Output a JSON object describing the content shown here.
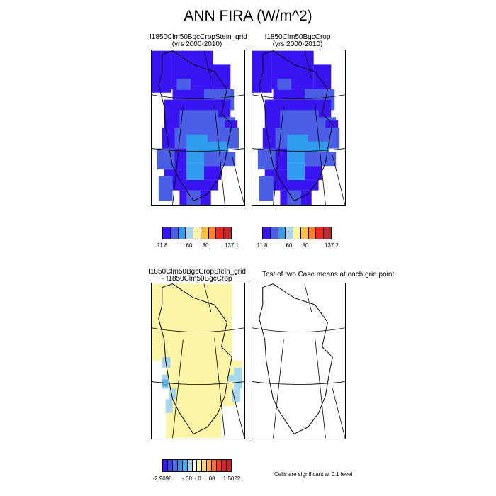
{
  "title": "ANN FIRA (W/m^2)",
  "panels": [
    {
      "line1": "I1850Clm50BgcCropStein_grid",
      "line2": "(yrs 2000-2010)"
    },
    {
      "line1": "I1850Clm50BgcCrop",
      "line2": "(yrs 2000-2010)"
    },
    {
      "line1": "I1850Clm50BgcCropStein_grid",
      "line2": "- I1850Clm50BgcCrop"
    },
    {
      "line1": "Test of two Case means at each grid point",
      "line2": ""
    }
  ],
  "colorbars": [
    {
      "colors": [
        "#3a14f2",
        "#4a5fe6",
        "#2f9cef",
        "#a6d6ee",
        "#fdf5a6",
        "#f9c243",
        "#f6822a",
        "#f0291d",
        "#c4262d"
      ],
      "labels": [
        "11.8",
        "60",
        "80",
        "137.1"
      ]
    },
    {
      "colors": [
        "#3a14f2",
        "#4a5fe6",
        "#2f9cef",
        "#a6d6ee",
        "#fdf5a6",
        "#f9c243",
        "#f6822a",
        "#f0291d",
        "#c4262d"
      ],
      "labels": [
        "11.8",
        "60",
        "80",
        "137.2"
      ]
    },
    {
      "colors": [
        "#3a14f2",
        "#3a3fe6",
        "#4a6ee8",
        "#3b93e6",
        "#4fb0ee",
        "#a6d6ee",
        "#fefefe",
        "#fdf5a6",
        "#f9d66c",
        "#f9a644",
        "#f6742a",
        "#f03a1d",
        "#d42826",
        "#c4262d"
      ],
      "labels": [
        "-2.9098",
        "-.08",
        "-.0",
        ".08",
        "1.5022"
      ]
    }
  ],
  "footnote": "Cells are significant at 0.1 level",
  "chart_data": [
    {
      "type": "heatmap",
      "title": "I1850Clm50BgcCropStein_grid (yrs 2000-2010)",
      "variable": "ANN FIRA",
      "units": "W/m^2",
      "range": [
        11.8,
        137.1
      ],
      "colorbar_labels": [
        "11.8",
        "60",
        "80",
        "137.1"
      ]
    },
    {
      "type": "heatmap",
      "title": "I1850Clm50BgcCrop (yrs 2000-2010)",
      "variable": "ANN FIRA",
      "units": "W/m^2",
      "range": [
        11.8,
        137.2
      ],
      "colorbar_labels": [
        "11.8",
        "60",
        "80",
        "137.2"
      ]
    },
    {
      "type": "heatmap",
      "title": "I1850Clm50BgcCropStein_grid - I1850Clm50BgcCrop",
      "variable": "ANN FIRA difference",
      "units": "W/m^2",
      "range": [
        -2.9098,
        1.5022
      ],
      "colorbar_labels": [
        "-2.9098",
        "-.08",
        "-.0",
        ".08",
        "1.5022"
      ]
    },
    {
      "type": "heatmap",
      "title": "Test of two Case means at each grid point",
      "note": "Cells are significant at 0.1 level",
      "significant_cells": 0
    }
  ]
}
